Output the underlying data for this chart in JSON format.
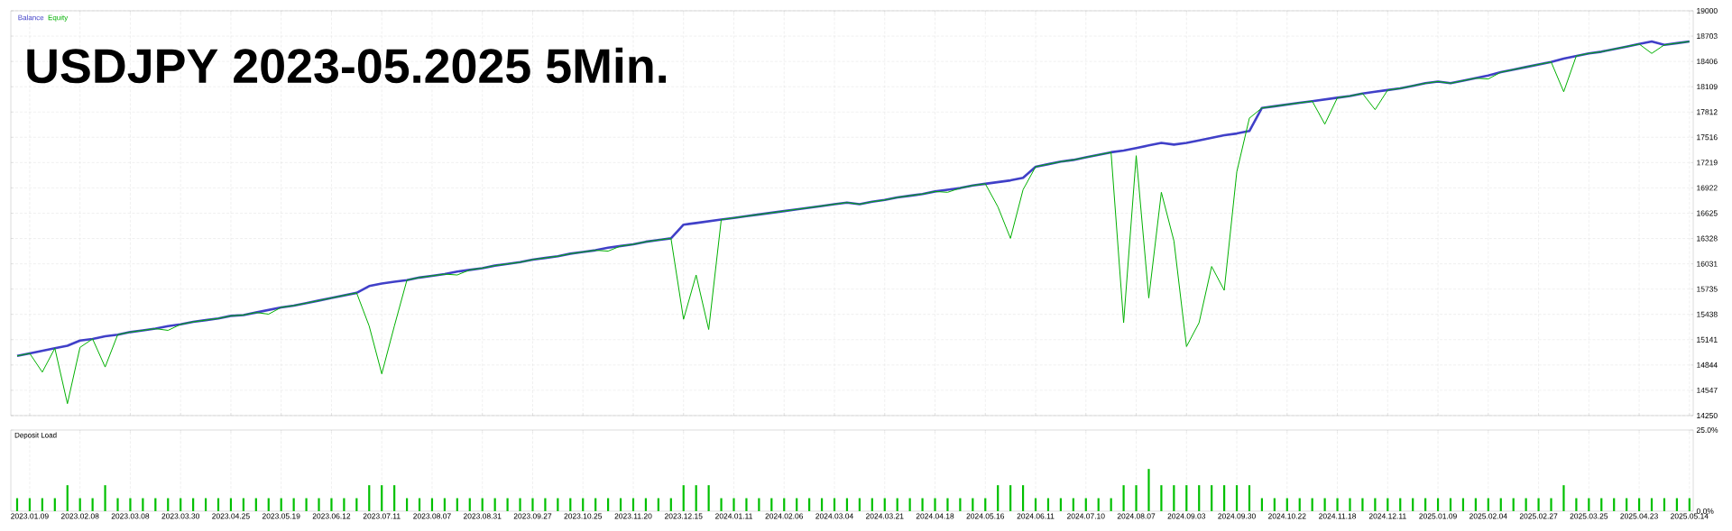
{
  "chart_data": [
    {
      "type": "line",
      "title": "USDJPY 2023-05.2025 5Min.",
      "ylim": [
        14250,
        19000
      ],
      "yticks": [
        14250,
        14547,
        14844,
        15141,
        15438,
        15735,
        16031,
        16328,
        16625,
        16922,
        17219,
        17516,
        17812,
        18109,
        18406,
        18703,
        19000
      ],
      "categories": [
        null,
        null,
        null,
        null,
        null,
        null,
        null,
        null,
        null,
        null,
        null,
        null,
        null,
        null,
        null,
        null,
        null,
        null,
        null,
        null,
        null,
        null,
        null,
        null,
        null,
        null,
        null,
        null,
        null,
        null,
        null,
        null,
        null,
        null,
        null,
        null,
        null,
        null,
        null,
        null,
        null,
        null,
        null,
        null,
        null,
        null,
        null,
        null,
        null,
        null,
        null,
        null,
        null,
        null,
        null,
        null,
        null,
        null,
        null,
        null,
        null,
        null,
        null,
        null,
        null,
        null,
        null,
        null,
        null,
        null,
        null,
        null,
        null,
        null,
        null,
        null,
        null,
        null,
        null,
        null,
        null,
        null,
        null,
        null,
        null,
        null,
        null,
        null,
        null,
        null,
        null,
        null,
        null,
        null,
        null,
        null,
        null,
        null,
        null,
        null,
        null,
        null,
        null,
        null,
        null,
        null,
        null,
        null,
        null,
        null,
        null,
        null,
        null,
        null,
        null,
        null,
        null,
        null,
        null,
        null,
        null,
        null,
        null,
        null,
        null,
        null,
        null,
        null,
        null,
        null,
        null,
        null,
        null,
        null
      ],
      "grid": true,
      "tick_labels": "y",
      "legend": "top left",
      "series": [
        {
          "name": "Balance",
          "color": "#4040c8",
          "values": [
            14950,
            14980,
            15010,
            15040,
            15070,
            15130,
            15150,
            15180,
            15200,
            15230,
            15250,
            15270,
            15300,
            15320,
            15350,
            15370,
            15390,
            15420,
            15430,
            15460,
            15490,
            15520,
            15540,
            15570,
            15600,
            15630,
            15660,
            15690,
            15770,
            15800,
            15820,
            15840,
            15870,
            15890,
            15910,
            15940,
            15960,
            15980,
            16010,
            16030,
            16050,
            16080,
            16100,
            16120,
            16150,
            16170,
            16190,
            16220,
            16240,
            16260,
            16290,
            16310,
            16330,
            16490,
            16510,
            16530,
            16550,
            16570,
            16590,
            16610,
            16630,
            16650,
            16670,
            16690,
            16710,
            16730,
            16750,
            16730,
            16760,
            16780,
            16810,
            16830,
            16850,
            16880,
            16900,
            16920,
            16950,
            16970,
            16990,
            17010,
            17040,
            17170,
            17200,
            17230,
            17250,
            17280,
            17310,
            17340,
            17360,
            17390,
            17420,
            17450,
            17430,
            17450,
            17480,
            17510,
            17540,
            17560,
            17590,
            17860,
            17880,
            17900,
            17920,
            17940,
            17960,
            17980,
            18000,
            18030,
            18050,
            18070,
            18090,
            18120,
            18150,
            18170,
            18150,
            18180,
            18210,
            18240,
            18280,
            18310,
            18340,
            18370,
            18400,
            18440,
            18470,
            18500,
            18520,
            18550,
            18580,
            18610,
            18640,
            18600,
            18620,
            18640
          ]
        },
        {
          "name": "Equity",
          "color": "#00b000",
          "values": [
            14950,
            14980,
            14760,
            15040,
            14390,
            15050,
            15150,
            14820,
            15200,
            15230,
            15250,
            15270,
            15250,
            15320,
            15350,
            15370,
            15390,
            15420,
            15430,
            15460,
            15440,
            15520,
            15540,
            15570,
            15600,
            15630,
            15660,
            15690,
            15300,
            14740,
            15300,
            15840,
            15870,
            15890,
            15910,
            15900,
            15960,
            15980,
            16010,
            16030,
            16050,
            16080,
            16100,
            16120,
            16150,
            16170,
            16190,
            16180,
            16240,
            16260,
            16290,
            16310,
            16330,
            15380,
            15900,
            15260,
            16550,
            16570,
            16590,
            16610,
            16630,
            16650,
            16670,
            16690,
            16710,
            16730,
            16750,
            16730,
            16760,
            16780,
            16810,
            16830,
            16850,
            16880,
            16870,
            16920,
            16950,
            16970,
            16700,
            16330,
            16900,
            17170,
            17200,
            17230,
            17250,
            17280,
            17310,
            17340,
            15340,
            17300,
            15630,
            16870,
            16300,
            15060,
            15340,
            16000,
            15720,
            17110,
            17740,
            17860,
            17880,
            17900,
            17920,
            17940,
            17670,
            17980,
            18000,
            18030,
            17840,
            18070,
            18090,
            18120,
            18150,
            18170,
            18150,
            18180,
            18210,
            18200,
            18280,
            18310,
            18340,
            18370,
            18400,
            18050,
            18470,
            18500,
            18520,
            18550,
            18580,
            18610,
            18500,
            18600,
            18620,
            18640
          ]
        }
      ]
    },
    {
      "type": "bar",
      "title": "Deposit Load",
      "color": "#00c000",
      "ylim": [
        0,
        25
      ],
      "grid": "x",
      "yticks": [
        {
          "value": 0,
          "label": "0.0%"
        },
        {
          "value": 25,
          "label": "25.0%"
        }
      ],
      "categories": [
        null,
        "2023.01.09",
        null,
        null,
        null,
        "2023.02.08",
        null,
        null,
        null,
        "2023.03.08",
        null,
        null,
        null,
        "2023.03.30",
        null,
        null,
        null,
        "2023.04.25",
        null,
        null,
        null,
        "2023.05.19",
        null,
        null,
        null,
        "2023.06.12",
        null,
        null,
        null,
        "2023.07.11",
        null,
        null,
        null,
        "2023.08.07",
        null,
        null,
        null,
        "2023.08.31",
        null,
        null,
        null,
        "2023.09.27",
        null,
        null,
        null,
        "2023.10.25",
        null,
        null,
        null,
        "2023.11.20",
        null,
        null,
        null,
        "2023.12.15",
        null,
        null,
        null,
        "2024.01.11",
        null,
        null,
        null,
        "2024.02.06",
        null,
        null,
        null,
        "2024.03.04",
        null,
        null,
        null,
        "2024.03.21",
        null,
        null,
        null,
        "2024.04.18",
        null,
        null,
        null,
        "2024.05.16",
        null,
        null,
        null,
        "2024.06.11",
        null,
        null,
        null,
        "2024.07.10",
        null,
        null,
        null,
        "2024.08.07",
        null,
        null,
        null,
        "2024.09.03",
        null,
        null,
        null,
        "2024.09.30",
        null,
        null,
        null,
        "2024.10.22",
        null,
        null,
        null,
        "2024.11.18",
        null,
        null,
        null,
        "2024.12.11",
        null,
        null,
        null,
        "2025.01.09",
        null,
        null,
        null,
        "2025.02.04",
        null,
        null,
        null,
        "2025.02.27",
        null,
        null,
        null,
        "2025.03.25",
        null,
        null,
        null,
        "2025.04.23",
        null,
        null,
        null,
        "2025.05.14"
      ],
      "values": [
        4,
        4,
        4,
        4,
        8,
        4,
        4,
        8,
        4,
        4,
        4,
        4,
        4,
        4,
        4,
        4,
        4,
        4,
        4,
        4,
        4,
        4,
        4,
        4,
        4,
        4,
        4,
        4,
        8,
        8,
        8,
        4,
        4,
        4,
        4,
        4,
        4,
        4,
        4,
        4,
        4,
        4,
        4,
        4,
        4,
        4,
        4,
        4,
        4,
        4,
        4,
        4,
        4,
        8,
        8,
        8,
        4,
        4,
        4,
        4,
        4,
        4,
        4,
        4,
        4,
        4,
        4,
        4,
        4,
        4,
        4,
        4,
        4,
        4,
        4,
        4,
        4,
        4,
        8,
        8,
        8,
        4,
        4,
        4,
        4,
        4,
        4,
        4,
        8,
        8,
        13,
        8,
        8,
        8,
        8,
        8,
        8,
        8,
        8,
        4,
        4,
        4,
        4,
        4,
        4,
        4,
        4,
        4,
        4,
        4,
        4,
        4,
        4,
        4,
        4,
        4,
        4,
        4,
        4,
        4,
        4,
        4,
        4,
        8,
        4,
        4,
        4,
        4,
        4,
        4,
        4,
        4,
        4,
        4
      ]
    }
  ]
}
